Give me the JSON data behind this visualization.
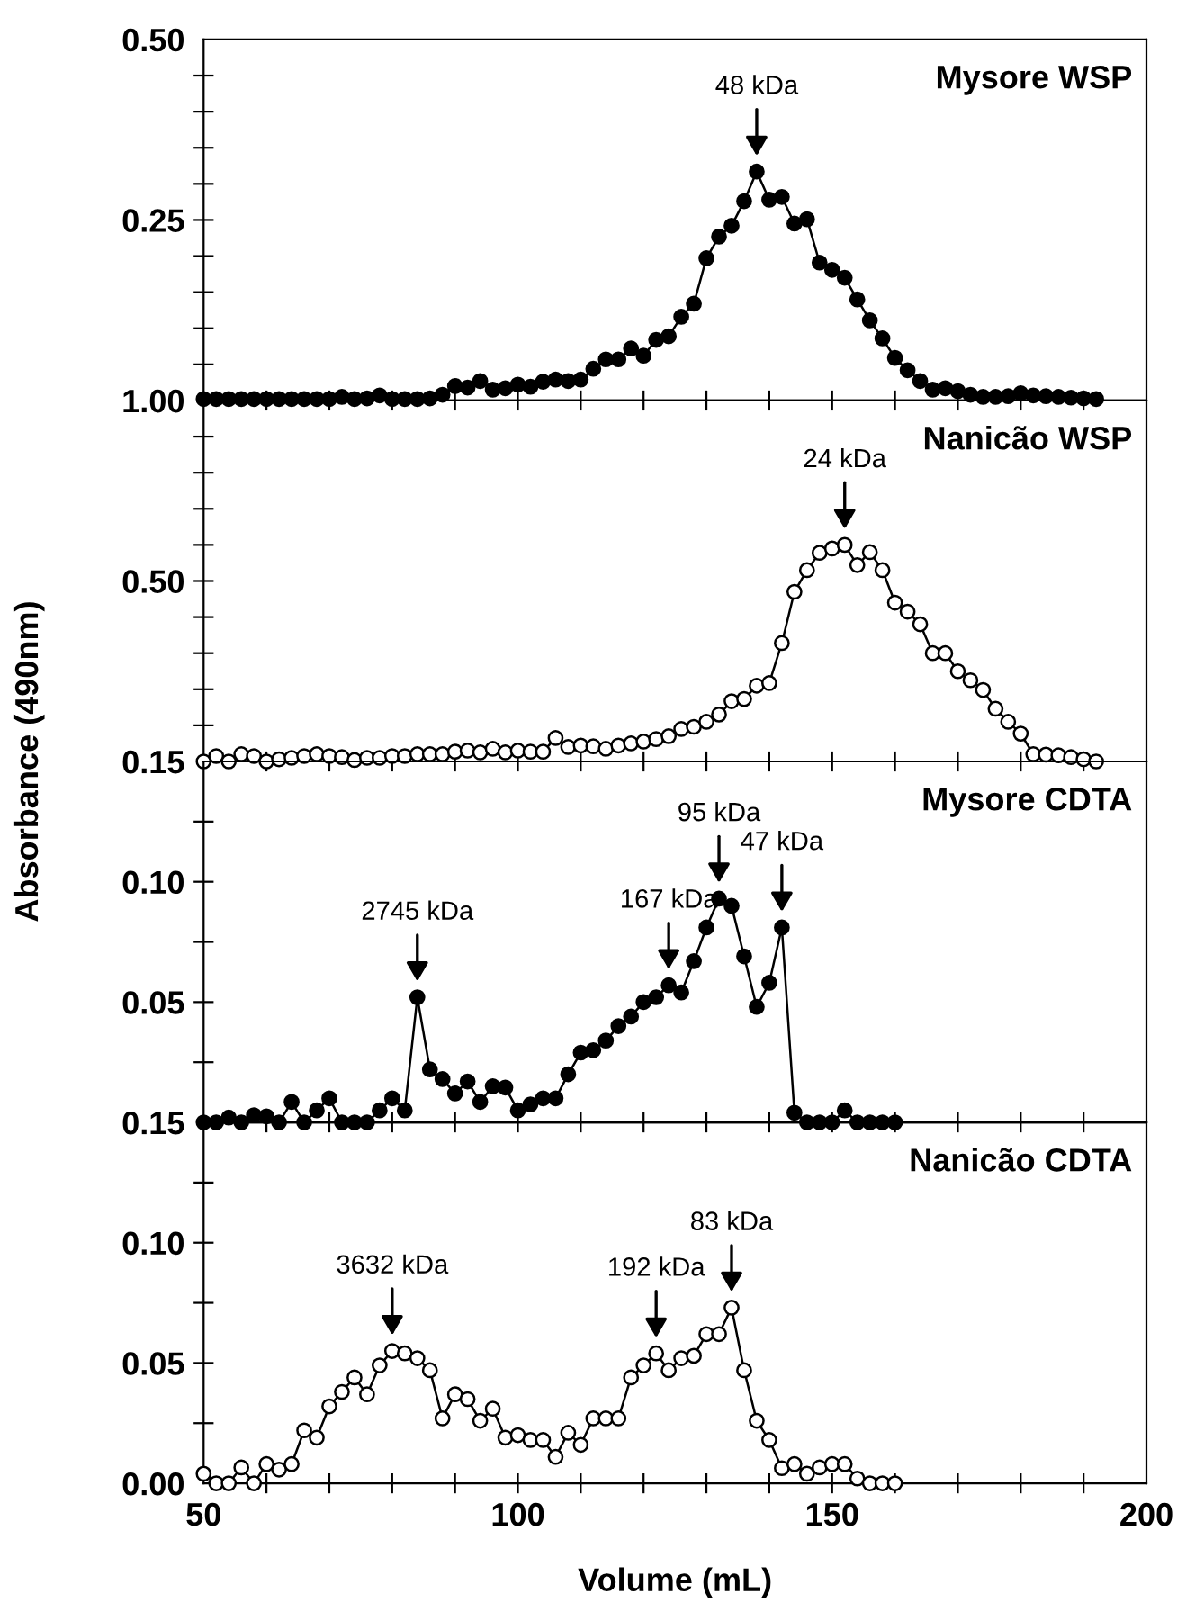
{
  "chart_data": [
    {
      "type": "line",
      "title": "Mysore WSP",
      "marker": "circle",
      "line_style": "solid",
      "grid": false,
      "legend": false,
      "tick_labels": "y",
      "xlim": [
        50,
        200
      ],
      "xticks": [
        50,
        {
          "value": 60,
          "label": null
        },
        {
          "value": 70,
          "label": null
        },
        {
          "value": 80,
          "label": null
        },
        {
          "value": 90,
          "label": null
        },
        100,
        {
          "value": 110,
          "label": null
        },
        {
          "value": 120,
          "label": null
        },
        {
          "value": 130,
          "label": null
        },
        {
          "value": 140,
          "label": null
        },
        150,
        {
          "value": 160,
          "label": null
        },
        {
          "value": 170,
          "label": null
        },
        {
          "value": 180,
          "label": null
        },
        {
          "value": 190,
          "label": null
        },
        200
      ],
      "ylim": [
        0,
        0.5
      ],
      "yticks": [
        {
          "value": 0.05,
          "label": null
        },
        {
          "value": 0.1,
          "label": null
        },
        {
          "value": 0.15,
          "label": null
        },
        {
          "value": 0.2,
          "label": null
        },
        {
          "value": 0.25,
          "label": "0.25"
        },
        {
          "value": 0.3,
          "label": null
        },
        {
          "value": 0.35,
          "label": null
        },
        {
          "value": 0.4,
          "label": null
        },
        {
          "value": 0.45,
          "label": null
        },
        {
          "value": 0.5,
          "label": "0.50"
        }
      ],
      "annotations": [
        {
          "text": "48 kDa",
          "x": 138,
          "y": 0.317
        }
      ],
      "series": [
        {
          "color": "#000000",
          "x": [
            50,
            52,
            54,
            56,
            58,
            60,
            62,
            64,
            66,
            68,
            70,
            72,
            74,
            76,
            78,
            80,
            82,
            84,
            86,
            88,
            90,
            92,
            94,
            96,
            98,
            100,
            102,
            104,
            106,
            108,
            110,
            112,
            114,
            116,
            118,
            120,
            122,
            124,
            126,
            128,
            130,
            132,
            134,
            136,
            138,
            140,
            142,
            144,
            146,
            148,
            150,
            152,
            154,
            156,
            158,
            160,
            162,
            164,
            166,
            168,
            170,
            172,
            174,
            176,
            178,
            180,
            182,
            184,
            186,
            188,
            190,
            192
          ],
          "values": [
            0.002,
            0.002,
            0.002,
            0.002,
            0.002,
            0.002,
            0.002,
            0.002,
            0.002,
            0.002,
            0.002,
            0.005,
            0.002,
            0.003,
            0.007,
            0.002,
            0.002,
            0.002,
            0.003,
            0.008,
            0.02,
            0.018,
            0.027,
            0.015,
            0.017,
            0.022,
            0.019,
            0.026,
            0.029,
            0.027,
            0.029,
            0.044,
            0.057,
            0.057,
            0.072,
            0.062,
            0.084,
            0.089,
            0.116,
            0.134,
            0.197,
            0.227,
            0.242,
            0.276,
            0.317,
            0.278,
            0.282,
            0.245,
            0.251,
            0.191,
            0.181,
            0.17,
            0.14,
            0.111,
            0.086,
            0.059,
            0.042,
            0.027,
            0.015,
            0.017,
            0.013,
            0.008,
            0.005,
            0.005,
            0.006,
            0.01,
            0.007,
            0.006,
            0.005,
            0.004,
            0.003,
            0.002
          ]
        }
      ]
    },
    {
      "type": "line",
      "title": "Nanicão WSP",
      "marker": "circle",
      "line_style": "solid",
      "grid": false,
      "legend": false,
      "tick_labels": "y",
      "xlim": [
        50,
        200
      ],
      "xticks": [
        50,
        {
          "value": 60,
          "label": null
        },
        {
          "value": 70,
          "label": null
        },
        {
          "value": 80,
          "label": null
        },
        {
          "value": 90,
          "label": null
        },
        100,
        {
          "value": 110,
          "label": null
        },
        {
          "value": 120,
          "label": null
        },
        {
          "value": 130,
          "label": null
        },
        {
          "value": 140,
          "label": null
        },
        150,
        {
          "value": 160,
          "label": null
        },
        {
          "value": 170,
          "label": null
        },
        {
          "value": 180,
          "label": null
        },
        {
          "value": 190,
          "label": null
        },
        200
      ],
      "ylim": [
        0,
        1.0
      ],
      "yticks": [
        {
          "value": 0.1,
          "label": null
        },
        {
          "value": 0.2,
          "label": null
        },
        {
          "value": 0.3,
          "label": null
        },
        {
          "value": 0.4,
          "label": null
        },
        {
          "value": 0.5,
          "label": "0.50"
        },
        {
          "value": 0.6,
          "label": null
        },
        {
          "value": 0.7,
          "label": null
        },
        {
          "value": 0.8,
          "label": null
        },
        {
          "value": 0.9,
          "label": null
        },
        {
          "value": 1.0,
          "label": "1.00"
        }
      ],
      "annotations": [
        {
          "text": "24 kDa",
          "x": 152,
          "y": 0.6
        }
      ],
      "series": [
        {
          "color": "#000000",
          "colors": [
            "#ffffff",
            "#ffffff",
            "#ffffff",
            "#ffffff",
            "#ffffff",
            "#ffffff",
            "#ffffff",
            "#ffffff",
            "#ffffff",
            "#ffffff",
            "#ffffff",
            "#ffffff",
            "#ffffff",
            "#ffffff",
            "#ffffff",
            "#ffffff",
            "#ffffff",
            "#ffffff",
            "#ffffff",
            "#ffffff",
            "#ffffff",
            "#ffffff",
            "#ffffff",
            "#ffffff",
            "#ffffff",
            "#ffffff",
            "#ffffff",
            "#ffffff",
            "#ffffff",
            "#ffffff",
            "#ffffff",
            "#ffffff",
            "#ffffff",
            "#ffffff",
            "#ffffff",
            "#ffffff",
            "#ffffff",
            "#ffffff",
            "#ffffff",
            "#ffffff",
            "#ffffff",
            "#ffffff",
            "#ffffff",
            "#ffffff",
            "#ffffff",
            "#ffffff",
            "#ffffff",
            "#ffffff",
            "#ffffff",
            "#ffffff",
            "#ffffff",
            "#ffffff",
            "#ffffff",
            "#ffffff",
            "#ffffff",
            "#ffffff",
            "#ffffff",
            "#ffffff",
            "#ffffff",
            "#ffffff",
            "#ffffff",
            "#ffffff",
            "#ffffff",
            "#ffffff",
            "#ffffff",
            "#ffffff",
            "#ffffff",
            "#ffffff",
            "#ffffff",
            "#ffffff",
            "#ffffff",
            "#ffffff"
          ],
          "x": [
            50,
            52,
            54,
            56,
            58,
            60,
            62,
            64,
            66,
            68,
            70,
            72,
            74,
            76,
            78,
            80,
            82,
            84,
            86,
            88,
            90,
            92,
            94,
            96,
            98,
            100,
            102,
            104,
            106,
            108,
            110,
            112,
            114,
            116,
            118,
            120,
            122,
            124,
            126,
            128,
            130,
            132,
            134,
            136,
            138,
            140,
            142,
            144,
            146,
            148,
            150,
            152,
            154,
            156,
            158,
            160,
            162,
            164,
            166,
            168,
            170,
            172,
            174,
            176,
            178,
            180,
            182,
            184,
            186,
            188,
            190,
            192
          ],
          "values": [
            0.0,
            0.015,
            0.0,
            0.02,
            0.015,
            0.0,
            0.006,
            0.01,
            0.015,
            0.02,
            0.015,
            0.012,
            0.004,
            0.01,
            0.01,
            0.015,
            0.015,
            0.02,
            0.02,
            0.02,
            0.027,
            0.03,
            0.025,
            0.035,
            0.025,
            0.03,
            0.027,
            0.027,
            0.065,
            0.04,
            0.044,
            0.042,
            0.035,
            0.044,
            0.05,
            0.055,
            0.062,
            0.07,
            0.09,
            0.096,
            0.11,
            0.13,
            0.167,
            0.173,
            0.21,
            0.217,
            0.328,
            0.47,
            0.53,
            0.578,
            0.59,
            0.6,
            0.544,
            0.58,
            0.53,
            0.44,
            0.415,
            0.38,
            0.3,
            0.3,
            0.25,
            0.225,
            0.198,
            0.146,
            0.11,
            0.077,
            0.02,
            0.019,
            0.017,
            0.012,
            0.006,
            0.0
          ]
        }
      ]
    },
    {
      "type": "line",
      "title": "Mysore CDTA",
      "ylabel": "Absorbance (490nm)",
      "marker": "circle",
      "line_style": "solid",
      "grid": false,
      "legend": false,
      "tick_labels": "y",
      "xlim": [
        50,
        200
      ],
      "xticks": [
        50,
        {
          "value": 60,
          "label": null
        },
        {
          "value": 70,
          "label": null
        },
        {
          "value": 80,
          "label": null
        },
        {
          "value": 90,
          "label": null
        },
        100,
        {
          "value": 110,
          "label": null
        },
        {
          "value": 120,
          "label": null
        },
        {
          "value": 130,
          "label": null
        },
        {
          "value": 140,
          "label": null
        },
        150,
        {
          "value": 160,
          "label": null
        },
        {
          "value": 170,
          "label": null
        },
        {
          "value": 180,
          "label": null
        },
        {
          "value": 190,
          "label": null
        },
        200
      ],
      "ylim": [
        0,
        0.15
      ],
      "yticks": [
        {
          "value": 0.025,
          "label": null
        },
        {
          "value": 0.05,
          "label": "0.05"
        },
        {
          "value": 0.075,
          "label": null
        },
        {
          "value": 0.1,
          "label": "0.10"
        },
        {
          "value": 0.125,
          "label": null
        },
        {
          "value": 0.15,
          "label": "0.15"
        }
      ],
      "annotations": [
        {
          "text": "2745 kDa",
          "x": 84,
          "y": 0.052
        },
        {
          "text": "167 kDa",
          "x": 124,
          "y": 0.057
        },
        {
          "text": "95 kDa",
          "x": 132,
          "y": 0.093
        },
        {
          "text": "47 kDa",
          "x": 142,
          "y": 0.081
        }
      ],
      "series": [
        {
          "color": "#000000",
          "x": [
            50,
            52,
            54,
            56,
            58,
            60,
            62,
            64,
            66,
            68,
            70,
            72,
            74,
            76,
            78,
            80,
            82,
            84,
            86,
            88,
            90,
            92,
            94,
            96,
            98,
            100,
            102,
            104,
            106,
            108,
            110,
            112,
            114,
            116,
            118,
            120,
            122,
            124,
            126,
            128,
            130,
            132,
            134,
            136,
            138,
            140,
            142,
            144,
            146,
            148,
            150,
            152,
            154,
            156,
            158,
            160
          ],
          "values": [
            0.0,
            0.0,
            0.002,
            0.0,
            0.003,
            0.0025,
            0.0,
            0.0085,
            0.0,
            0.005,
            0.01,
            0.0,
            0.0,
            0.0,
            0.005,
            0.01,
            0.005,
            0.052,
            0.022,
            0.018,
            0.012,
            0.017,
            0.0085,
            0.015,
            0.0145,
            0.005,
            0.0075,
            0.01,
            0.01,
            0.02,
            0.029,
            0.03,
            0.034,
            0.04,
            0.044,
            0.05,
            0.052,
            0.057,
            0.054,
            0.067,
            0.081,
            0.093,
            0.09,
            0.069,
            0.048,
            0.058,
            0.081,
            0.004,
            0.0,
            0.0,
            0.0,
            0.005,
            0.0,
            0.0,
            0.0,
            0.0
          ]
        }
      ]
    },
    {
      "type": "line",
      "title": "Nanicão CDTA",
      "xlabel": "Volume (mL)",
      "marker": "circle",
      "line_style": "solid",
      "grid": false,
      "legend": false,
      "xlim": [
        50,
        200
      ],
      "xticks": [
        50,
        {
          "value": 60,
          "label": null
        },
        {
          "value": 70,
          "label": null
        },
        {
          "value": 80,
          "label": null
        },
        {
          "value": 90,
          "label": null
        },
        100,
        {
          "value": 110,
          "label": null
        },
        {
          "value": 120,
          "label": null
        },
        {
          "value": 130,
          "label": null
        },
        {
          "value": 140,
          "label": null
        },
        150,
        {
          "value": 160,
          "label": null
        },
        {
          "value": 170,
          "label": null
        },
        {
          "value": 180,
          "label": null
        },
        {
          "value": 190,
          "label": null
        },
        200
      ],
      "ylim": [
        0,
        0.15
      ],
      "yticks": [
        {
          "value": 0,
          "label": "0.00"
        },
        {
          "value": 0.025,
          "label": null
        },
        {
          "value": 0.05,
          "label": "0.05"
        },
        {
          "value": 0.075,
          "label": null
        },
        {
          "value": 0.1,
          "label": "0.10"
        },
        {
          "value": 0.125,
          "label": null
        },
        {
          "value": 0.15,
          "label": "0.15"
        }
      ],
      "annotations": [
        {
          "text": "3632 kDa",
          "x": 80,
          "y": 0.055
        },
        {
          "text": "192 kDa",
          "x": 122,
          "y": 0.054
        },
        {
          "text": "83 kDa",
          "x": 134,
          "y": 0.073
        }
      ],
      "series": [
        {
          "color": "#000000",
          "colors": [
            "#ffffff",
            "#ffffff",
            "#ffffff",
            "#ffffff",
            "#ffffff",
            "#ffffff",
            "#ffffff",
            "#ffffff",
            "#ffffff",
            "#ffffff",
            "#ffffff",
            "#ffffff",
            "#ffffff",
            "#ffffff",
            "#ffffff",
            "#ffffff",
            "#ffffff",
            "#ffffff",
            "#ffffff",
            "#ffffff",
            "#ffffff",
            "#ffffff",
            "#ffffff",
            "#ffffff",
            "#ffffff",
            "#ffffff",
            "#ffffff",
            "#ffffff",
            "#ffffff",
            "#ffffff",
            "#ffffff",
            "#ffffff",
            "#ffffff",
            "#ffffff",
            "#ffffff",
            "#ffffff",
            "#ffffff",
            "#ffffff",
            "#ffffff",
            "#ffffff",
            "#ffffff",
            "#ffffff",
            "#ffffff",
            "#ffffff",
            "#ffffff",
            "#ffffff",
            "#ffffff",
            "#ffffff",
            "#ffffff",
            "#ffffff",
            "#ffffff",
            "#ffffff",
            "#ffffff",
            "#ffffff",
            "#ffffff",
            "#ffffff"
          ],
          "x": [
            50,
            52,
            54,
            56,
            58,
            60,
            62,
            64,
            66,
            68,
            70,
            72,
            74,
            76,
            78,
            80,
            82,
            84,
            86,
            88,
            90,
            92,
            94,
            96,
            98,
            100,
            102,
            104,
            106,
            108,
            110,
            112,
            114,
            116,
            118,
            120,
            122,
            124,
            126,
            128,
            130,
            132,
            134,
            136,
            138,
            140,
            142,
            144,
            146,
            148,
            150,
            152,
            154,
            156,
            158,
            160
          ],
          "values": [
            0.004,
            0.0,
            0.0,
            0.0066,
            0.0,
            0.008,
            0.0057,
            0.008,
            0.022,
            0.019,
            0.032,
            0.038,
            0.044,
            0.037,
            0.049,
            0.055,
            0.054,
            0.052,
            0.047,
            0.027,
            0.037,
            0.035,
            0.026,
            0.031,
            0.019,
            0.02,
            0.018,
            0.018,
            0.011,
            0.021,
            0.016,
            0.027,
            0.027,
            0.027,
            0.044,
            0.049,
            0.054,
            0.047,
            0.052,
            0.053,
            0.062,
            0.062,
            0.073,
            0.047,
            0.026,
            0.018,
            0.0063,
            0.008,
            0.004,
            0.0066,
            0.008,
            0.008,
            0.002,
            0.0,
            0.0,
            0.0
          ]
        }
      ]
    }
  ]
}
